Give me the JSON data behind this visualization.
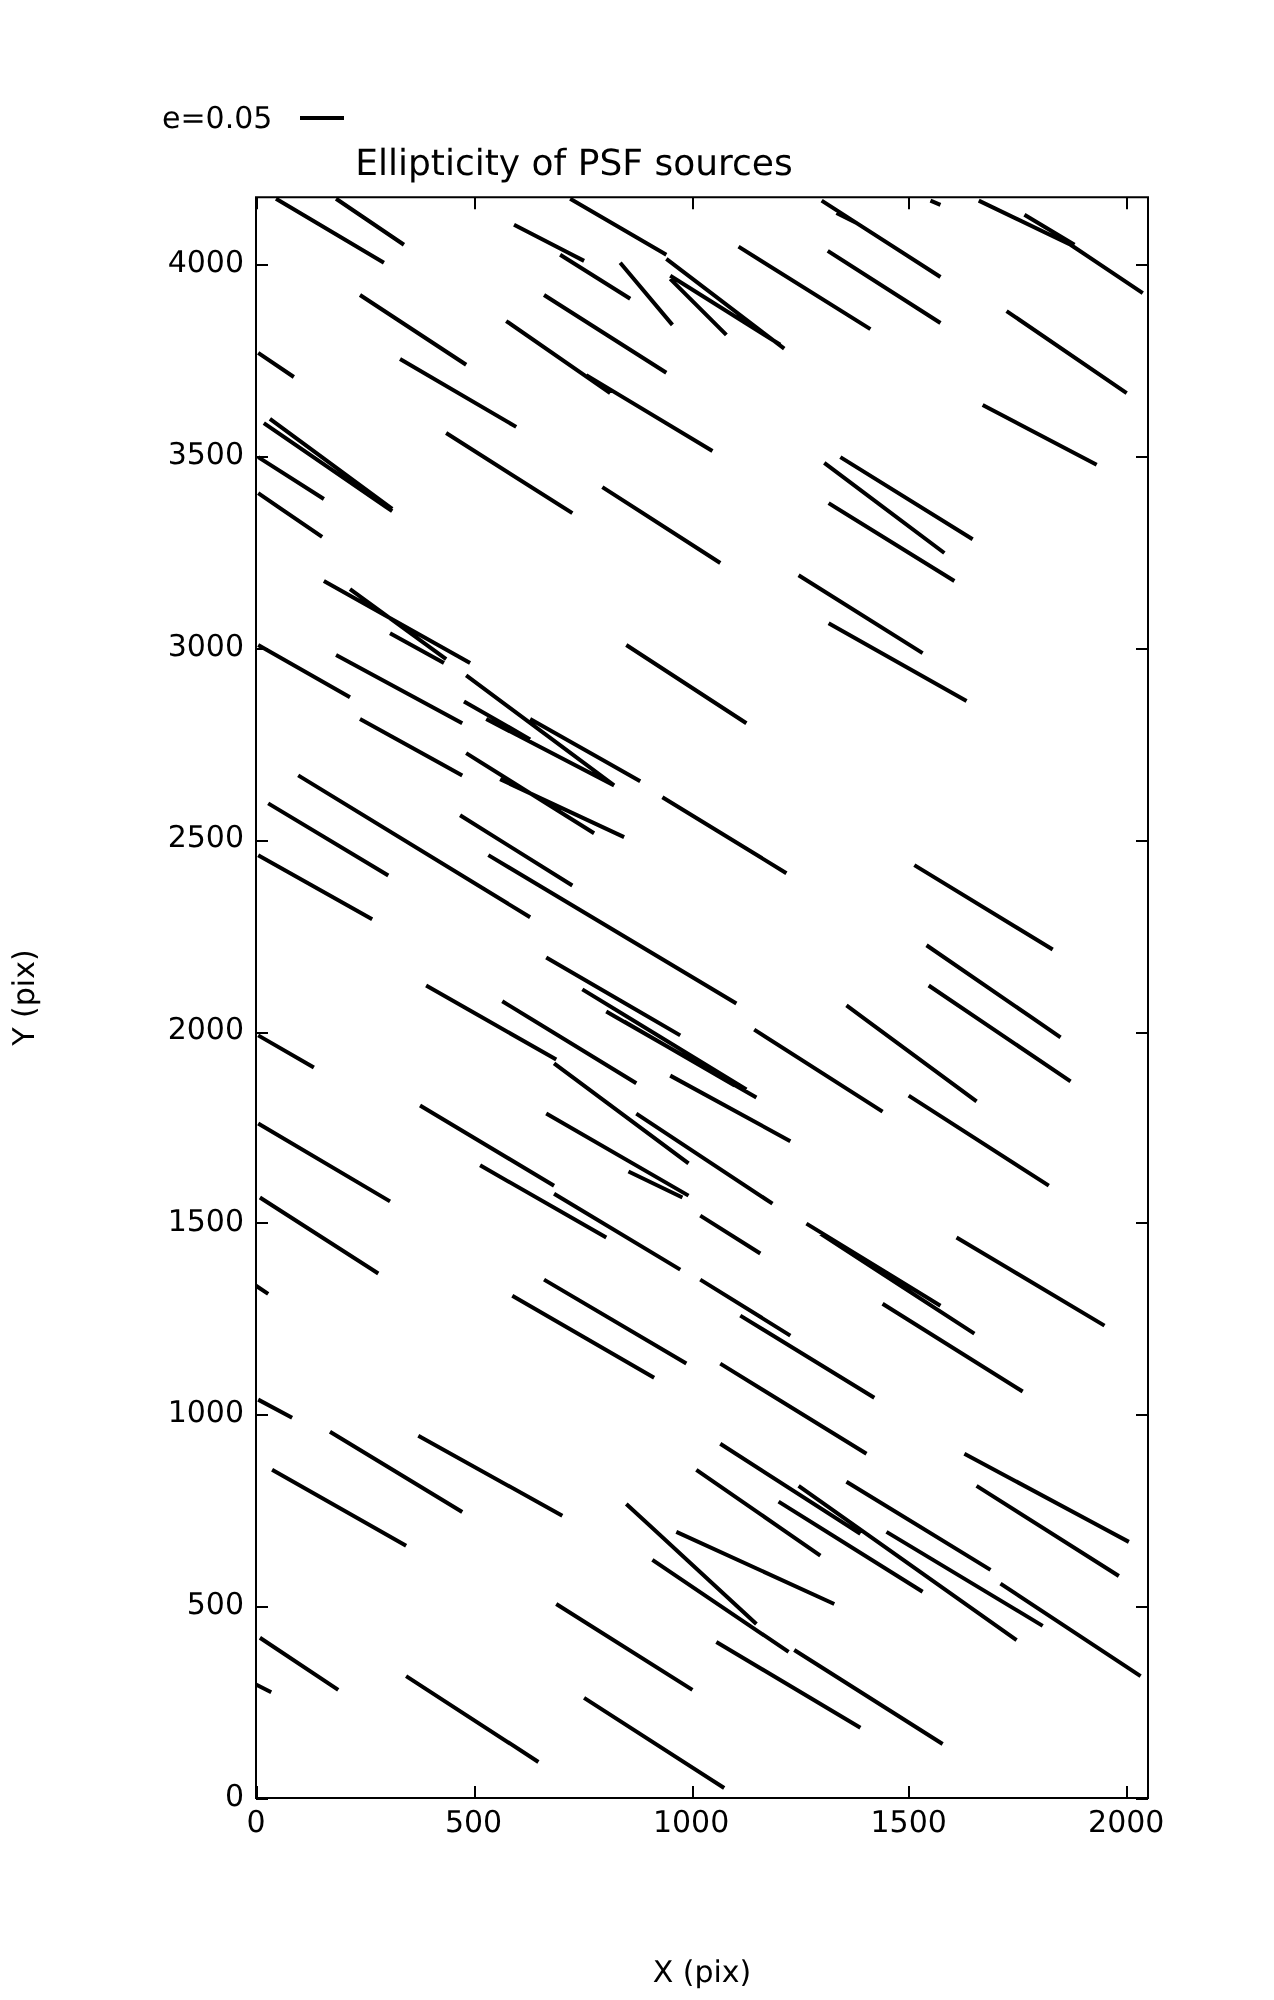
{
  "chart_data": {
    "type": "line",
    "title": "Ellipticity of PSF sources",
    "xlabel": "X (pix)",
    "ylabel": "Y (pix)",
    "annotations": [
      "e=0.05"
    ],
    "xlim": [
      0,
      2050
    ],
    "ylim": [
      0,
      4175
    ],
    "xticks": [
      0,
      500,
      1000,
      1500,
      2000
    ],
    "yticks": [
      0,
      500,
      1000,
      1500,
      2000,
      2500,
      3000,
      3500,
      4000
    ],
    "grid": false,
    "marker": "none",
    "line_style": "solid",
    "series": [
      {
        "color": "#000000",
        "x": [
          46,
          294,
          null,
          184,
          340,
          null,
          722,
          943,
          null,
          593,
          754,
          null,
          699,
          860,
          null,
          943,
          1214,
          null,
          952,
          1205,
          null,
          837,
          957,
          null,
          239,
          483,
          null,
          662,
          943,
          null,
          575,
          814,
          null,
          759,
          1049,
          null,
          331,
          598,
          null,
          5,
          87,
          null,
          437,
          727,
          null,
          796,
          1067,
          null,
          18,
          313,
          null,
          32,
          313,
          null,
          5,
          156,
          null,
          5,
          152,
          null,
          156,
          492,
          null,
          216,
          437,
          null,
          308,
          432,
          null,
          5,
          216,
          null,
          184,
          474,
          null,
          239,
          474,
          null,
          529,
          823,
          null,
          630,
          883,
          null,
          483,
          777,
          null,
          561,
          846,
          null,
          483,
          823,
          null,
          478,
          630,
          null,
          1300,
          1573,
          null,
          1334,
          1380,
          null,
          1550,
          1573,
          null,
          1661,
          1872,
          2038,
          null,
          1766,
          1881,
          null,
          1109,
          1412,
          null,
          1314,
          1573,
          null,
          1725,
          2001,
          null,
          1670,
          1932,
          null,
          1343,
          1647,
          null,
          1306,
          1582,
          null,
          1316,
          1605,
          null,
          1247,
          1532,
          null,
          1316,
          1633,
          null,
          851,
          1127,
          null,
          952,
          1081,
          null,
          97,
          630,
          null,
          28,
          304,
          null,
          5,
          267,
          null,
          469,
          727,
          null,
          534,
          1104,
          null,
          934,
          1219,
          null,
          667,
          975,
          null,
          750,
          1127,
          null,
          805,
          1150,
          null,
          846,
          1100,
          null,
          391,
          690,
          null,
          566,
          874,
          null,
          685,
          994,
          null,
          952,
          1228,
          null,
          5,
          133,
          null,
          5,
          308,
          null,
          377,
          685,
          null,
          667,
          994,
          null,
          874,
          1187,
          null,
          856,
          980,
          null,
          515,
          805,
          null,
          685,
          975,
          null,
          1021,
          1159,
          null,
          9,
          281,
          null,
          1513,
          1831,
          null,
          1541,
          1849,
          null,
          1546,
          1872,
          null,
          1357,
          1656,
          null,
          1145,
          1440,
          null,
          1500,
          1822,
          null,
          1265,
          1573,
          null,
          1297,
          1651,
          null,
          1610,
          1950,
          null,
          1021,
          1228,
          null,
          1113,
          1421,
          null,
          1440,
          1762,
          null,
          1067,
          1403,
          null,
          1067,
          1389,
          null,
          1012,
          1297,
          null,
          1247,
          1748,
          null,
          1201,
          1532,
          null,
          1357,
          1688,
          null,
          1449,
          1808,
          null,
          1628,
          2006,
          null,
          1656,
          1983,
          null,
          1711,
          2033,
          null,
          966,
          1329,
          null,
          851,
          1150,
          null,
          911,
          1224,
          null,
          1058,
          1389,
          null,
          1237,
          1578,
          null,
          754,
          1076,
          null,
          0,
          28,
          null,
          589,
          915,
          null,
          662,
          989,
          null,
          5,
          83,
          null,
          170,
          474,
          null,
          373,
          704,
          null,
          37,
          345,
          null,
          690,
          1003,
          null,
          9,
          189,
          null,
          0,
          35,
          null,
          345,
          649
        ],
        "values": [
          4171,
          4004,
          null,
          4171,
          4051,
          null,
          4171,
          4025,
          null,
          4103,
          4009,
          null,
          4025,
          3910,
          null,
          4014,
          3780,
          null,
          3970,
          3790,
          null,
          4004,
          3842,
          null,
          3920,
          3738,
          null,
          3920,
          3717,
          null,
          3852,
          3664,
          null,
          3711,
          3513,
          null,
          3753,
          3576,
          null,
          3769,
          3706,
          null,
          3560,
          3351,
          null,
          3419,
          3221,
          null,
          3586,
          3356,
          null,
          3597,
          3362,
          null,
          3497,
          3388,
          null,
          3403,
          3289,
          null,
          3174,
          2960,
          null,
          3153,
          2970,
          null,
          3038,
          2960,
          null,
          3007,
          2871,
          null,
          2981,
          2803,
          null,
          2814,
          2667,
          null,
          2814,
          2641,
          null,
          2814,
          2652,
          null,
          2725,
          2516,
          null,
          2657,
          2506,
          null,
          2928,
          2641,
          null,
          2860,
          2761,
          null,
          4166,
          3967,
          null,
          4134,
          4108,
          null,
          4166,
          4155,
          null,
          4166,
          4051,
          3925,
          null,
          4129,
          4051,
          null,
          4046,
          3831,
          null,
          4035,
          3847,
          null,
          3878,
          3664,
          null,
          3633,
          3477,
          null,
          3497,
          3283,
          null,
          3482,
          3247,
          null,
          3377,
          3174,
          null,
          3189,
          2986,
          null,
          3064,
          2861,
          null,
          3007,
          2803,
          null,
          3962,
          3816,
          null,
          2667,
          2297,
          null,
          2594,
          2406,
          null,
          2459,
          2292,
          null,
          2563,
          2380,
          null,
          2459,
          2072,
          null,
          2610,
          2412,
          null,
          2192,
          1989,
          null,
          2109,
          1848,
          null,
          2051,
          1827,
          null,
          2025,
          1858,
          null,
          2119,
          1926,
          null,
          2078,
          1864,
          null,
          1916,
          1655,
          null,
          1884,
          1713,
          null,
          1989,
          1905,
          null,
          1759,
          1556,
          null,
          1806,
          1597,
          null,
          1785,
          1571,
          null,
          1785,
          1550,
          null,
          1634,
          1566,
          null,
          1650,
          1462,
          null,
          1576,
          1378,
          null,
          1519,
          1420,
          null,
          1566,
          1368,
          null,
          2433,
          2213,
          null,
          2224,
          1984,
          null,
          2119,
          1869,
          null,
          2067,
          1817,
          null,
          2004,
          1790,
          null,
          1832,
          1597,
          null,
          1498,
          1284,
          null,
          1472,
          1211,
          null,
          1462,
          1232,
          null,
          1352,
          1206,
          null,
          1258,
          1044,
          null,
          1289,
          1060,
          null,
          1133,
          898,
          null,
          924,
          689,
          null,
          856,
          632,
          null,
          814,
          412,
          null,
          773,
          538,
          null,
          825,
          595,
          null,
          694,
          449,
          null,
          898,
          668,
          null,
          814,
          579,
          null,
          559,
          318,
          null,
          694,
          506,
          null,
          767,
          454,
          null,
          621,
          381,
          null,
          407,
          183,
          null,
          386,
          141,
          null,
          261,
          26,
          null,
          1336,
          1315,
          null,
          1310,
          1096,
          null,
          1352,
          1133,
          null,
          1039,
          992,
          null,
          955,
          746,
          null,
          945,
          736,
          null,
          856,
          658,
          null,
          506,
          282,
          null,
          418,
          282,
          null,
          296,
          276,
          null,
          318,
          94
        ]
      }
    ]
  }
}
